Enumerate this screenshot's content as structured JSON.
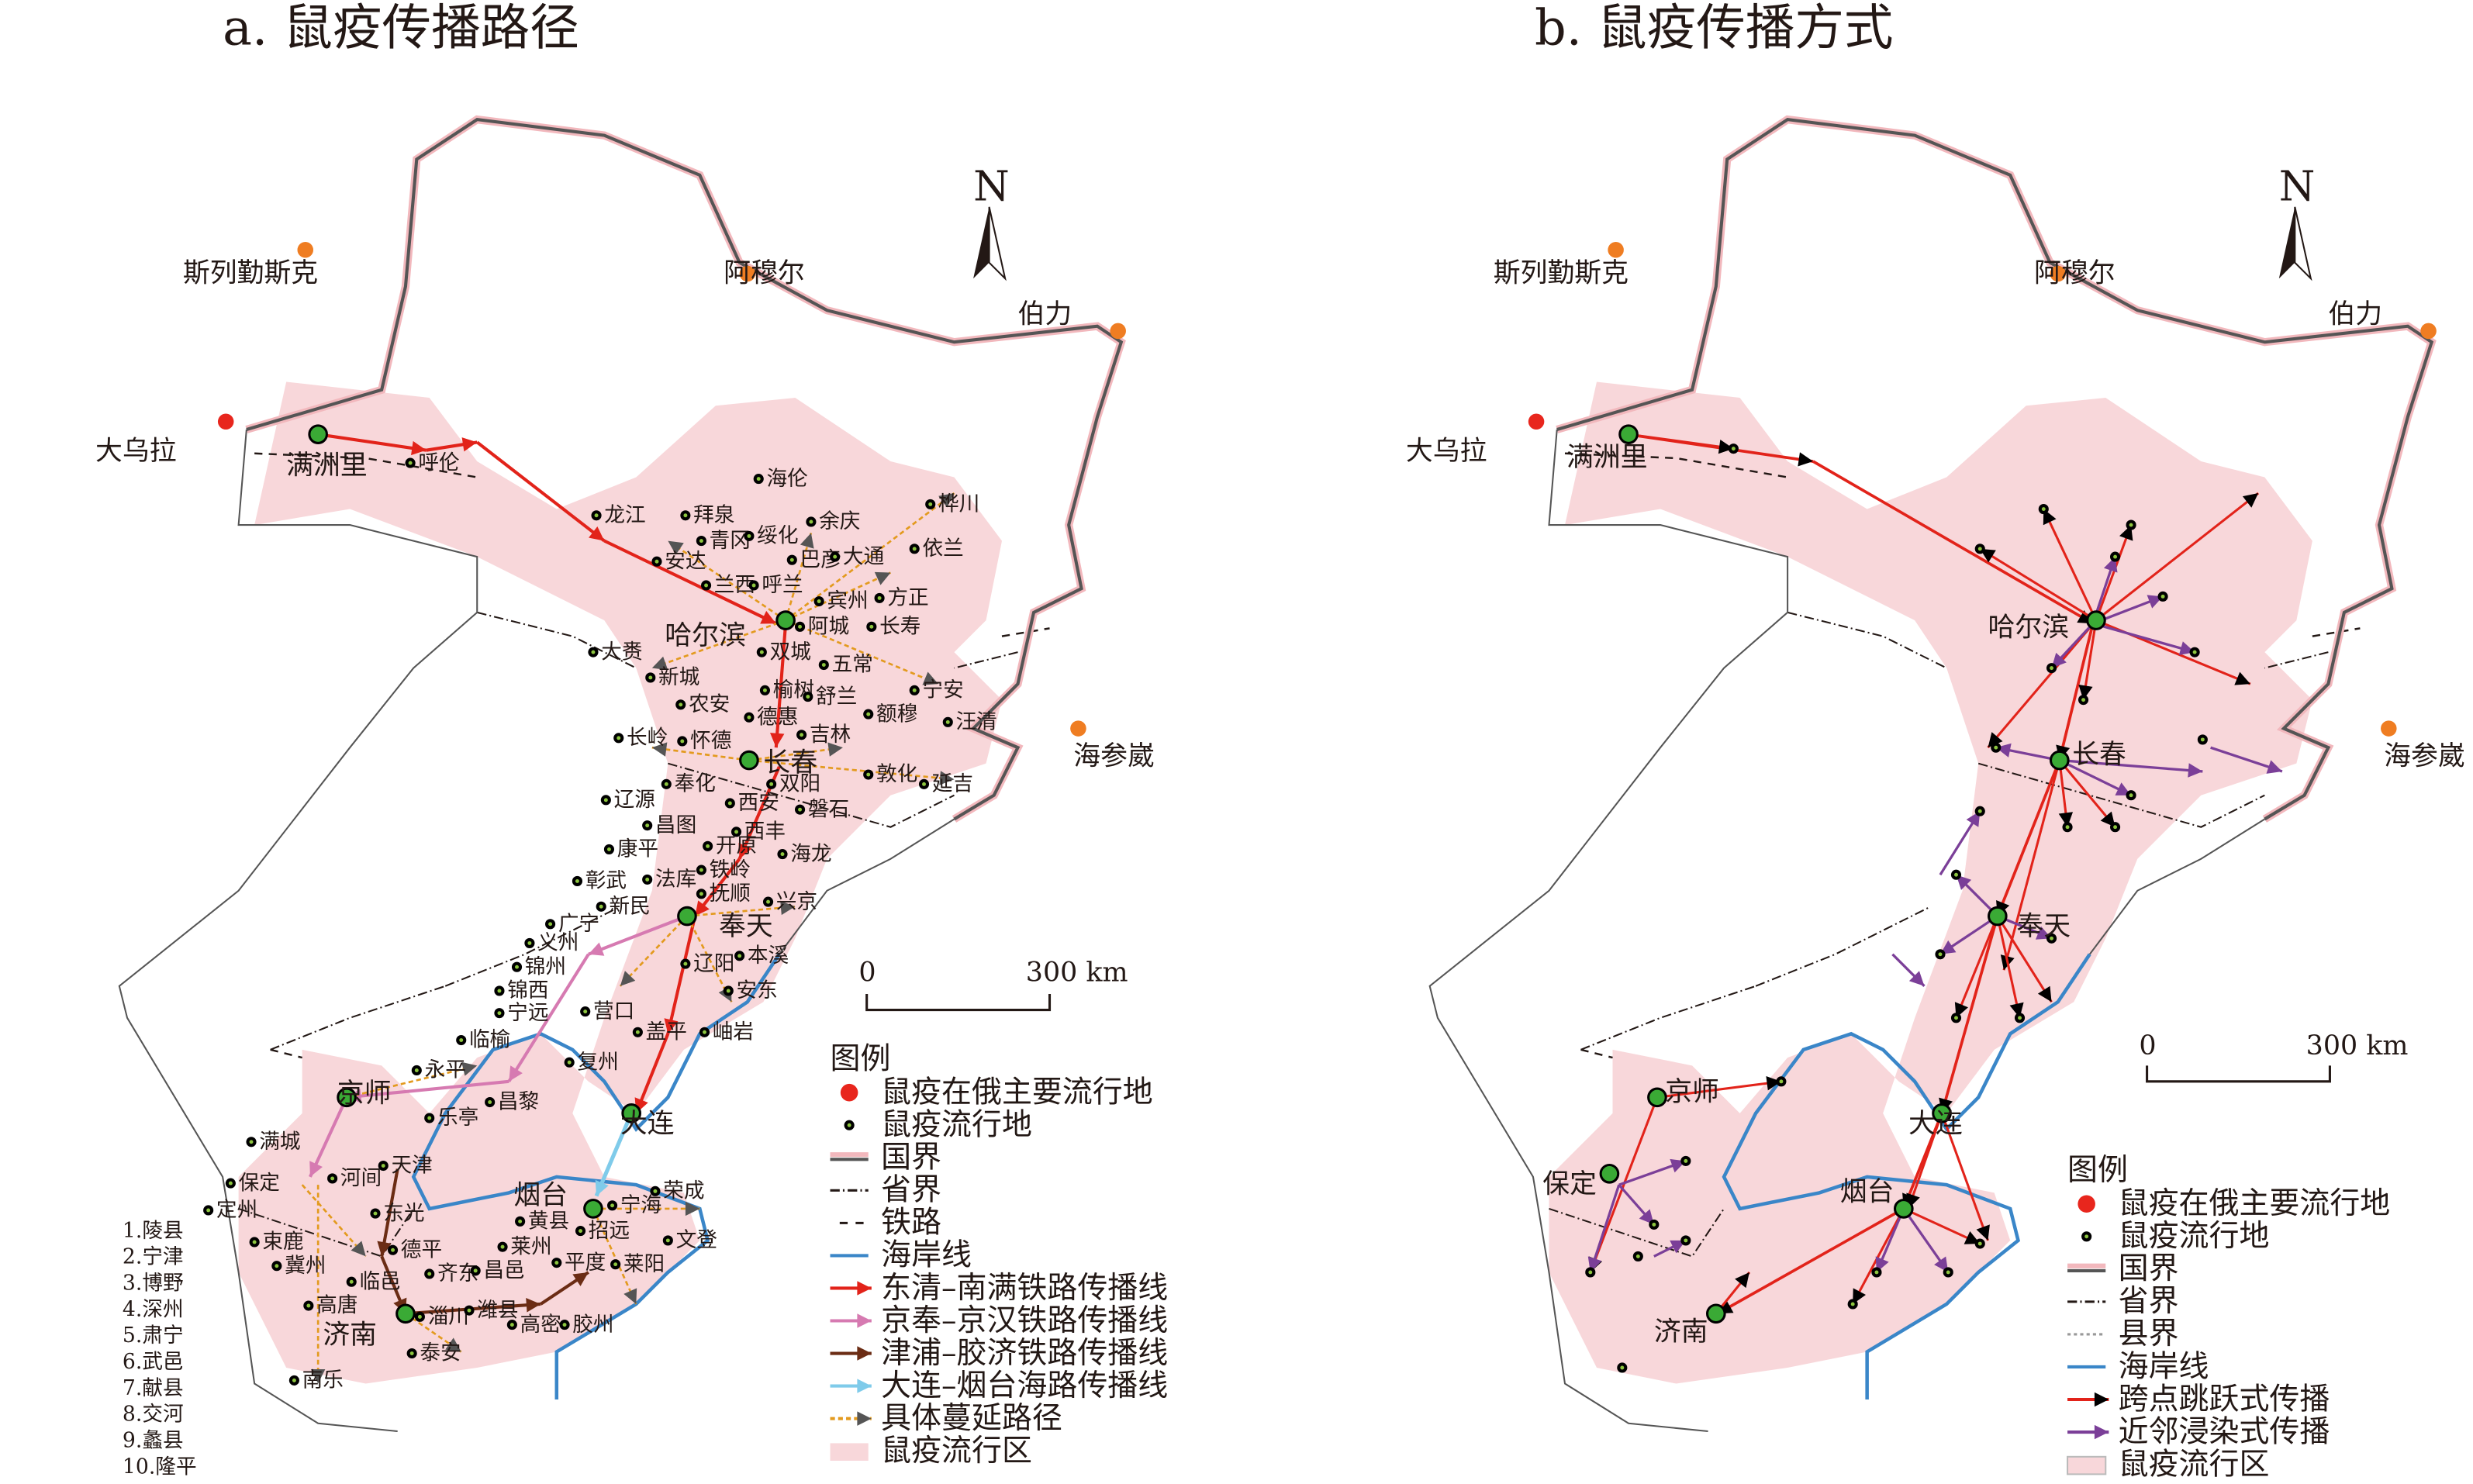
{
  "colors": {
    "plague_area": "#f8d7da",
    "national_border": "#555555",
    "national_border_halo": "#f2b8bd",
    "coastline": "#3a86c8",
    "east_qing_south_manchuria": "#e2231a",
    "jingfeng_jinghan": "#d67ab1",
    "jinpu_jiaoji": "#6b2c14",
    "dalian_yantai": "#7fcbea",
    "spread_path": "#e39a1e",
    "russia_city": "#e8261d",
    "plague_site_dot": "#000000",
    "plague_site_center": "#8dc63f",
    "jump_spread": "#000000",
    "neighbor_spread": "#7b3f98"
  },
  "panel_a": {
    "title": "a. 鼠疫传播路径",
    "north_label": "N",
    "scale": {
      "zero": "0",
      "end": "300 km"
    },
    "russia_cities": [
      "斯列勤斯克",
      "阿穆尔",
      "伯力",
      "大乌拉",
      "海参崴"
    ],
    "hubs": [
      "满洲里",
      "哈尔滨",
      "长春",
      "奉天",
      "京师",
      "大连",
      "烟台",
      "济南"
    ],
    "places": [
      "呼伦",
      "海伦",
      "龙江",
      "拜泉",
      "余庆",
      "青冈",
      "绥化",
      "巴彦",
      "大通",
      "依兰",
      "桦川",
      "安达",
      "兰西",
      "呼兰",
      "宾州",
      "方正",
      "阿城",
      "长寿",
      "大赉",
      "双城",
      "五常",
      "新城",
      "榆树",
      "舒兰",
      "宁安",
      "农安",
      "额穆",
      "汪清",
      "德惠",
      "长岭",
      "怀德",
      "吉林",
      "敦化",
      "延吉",
      "奉化",
      "双阳",
      "辽源",
      "西安",
      "磐石",
      "昌图",
      "西丰",
      "海龙",
      "康平",
      "开原",
      "彰武",
      "法库",
      "铁岭",
      "新民",
      "抚顺",
      "兴京",
      "广宁",
      "辽阳",
      "本溪",
      "义州",
      "锦州",
      "锦西",
      "宁远",
      "营口",
      "安东",
      "临榆",
      "盖平",
      "岫岩",
      "复州",
      "永平",
      "昌黎",
      "乐亭",
      "满城",
      "天津",
      "保定",
      "河间",
      "定州",
      "东光",
      "宁海",
      "荣成",
      "黄县",
      "招远",
      "德平",
      "莱州",
      "平度",
      "莱阳",
      "文登",
      "临邑",
      "齐东",
      "昌邑",
      "淄川",
      "潍县",
      "高密",
      "胶州",
      "泰安",
      "南乐",
      "高唐",
      "冀州",
      "束鹿"
    ],
    "numbered_list": [
      "1.陵县",
      "2.宁津",
      "3.博野",
      "4.深州",
      "5.肃宁",
      "6.武邑",
      "7.献县",
      "8.交河",
      "9.蠡县",
      "10.隆平"
    ],
    "legend": {
      "title": "图例",
      "items": [
        "鼠疫在俄主要流行地",
        "鼠疫流行地",
        "国界",
        "省界",
        "铁路",
        "海岸线",
        "东清–南满铁路传播线",
        "京奉–京汉铁路传播线",
        "津浦–胶济铁路传播线",
        "大连–烟台海路传播线",
        "具体蔓延路径",
        "鼠疫流行区"
      ]
    }
  },
  "panel_b": {
    "title": "b. 鼠疫传播方式",
    "north_label": "N",
    "scale": {
      "zero": "0",
      "end": "300 km"
    },
    "russia_cities": [
      "斯列勤斯克",
      "阿穆尔",
      "伯力",
      "大乌拉",
      "海参崴"
    ],
    "hubs": [
      "满洲里",
      "哈尔滨",
      "长春",
      "奉天",
      "京师",
      "大连",
      "烟台",
      "济南",
      "保定"
    ],
    "legend": {
      "title": "图例",
      "items": [
        "鼠疫在俄主要流行地",
        "鼠疫流行地",
        "国界",
        "省界",
        "县界",
        "海岸线",
        "跨点跳跃式传播",
        "近邻浸染式传播",
        "鼠疫流行区"
      ]
    }
  }
}
